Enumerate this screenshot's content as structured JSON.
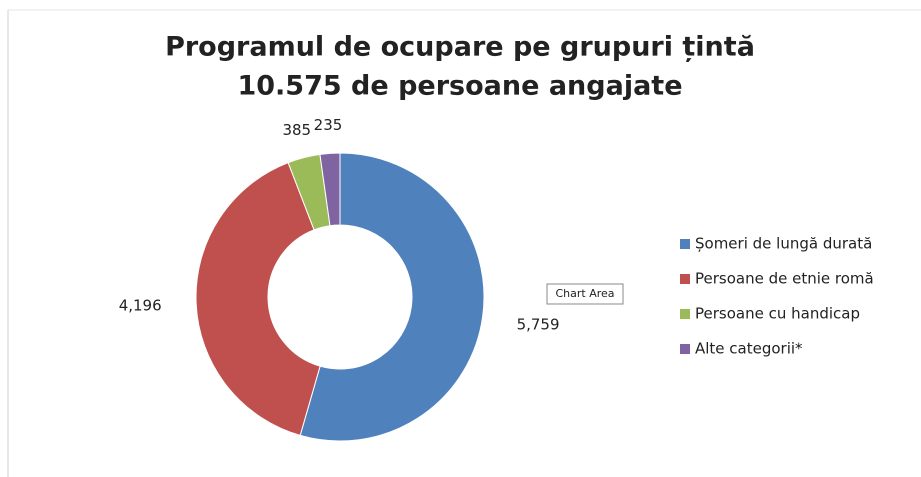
{
  "chart_data": {
    "type": "donut",
    "title": [
      "Programul de ocupare pe grupuri țintă",
      "10.575 de persoane angajate"
    ],
    "categories": [
      "Șomeri de lungă durată",
      "Persoane de etnie romă",
      "Persoane cu handicap",
      "Alte categorii*"
    ],
    "values": [
      5759,
      4196,
      385,
      235
    ],
    "value_labels": [
      "5,759",
      "4,196",
      "385",
      "235"
    ],
    "colors": [
      "#4f81bd",
      "#c0504d",
      "#9bbb59",
      "#8064a2"
    ],
    "legend": "right",
    "tooltip": "Chart Area"
  }
}
